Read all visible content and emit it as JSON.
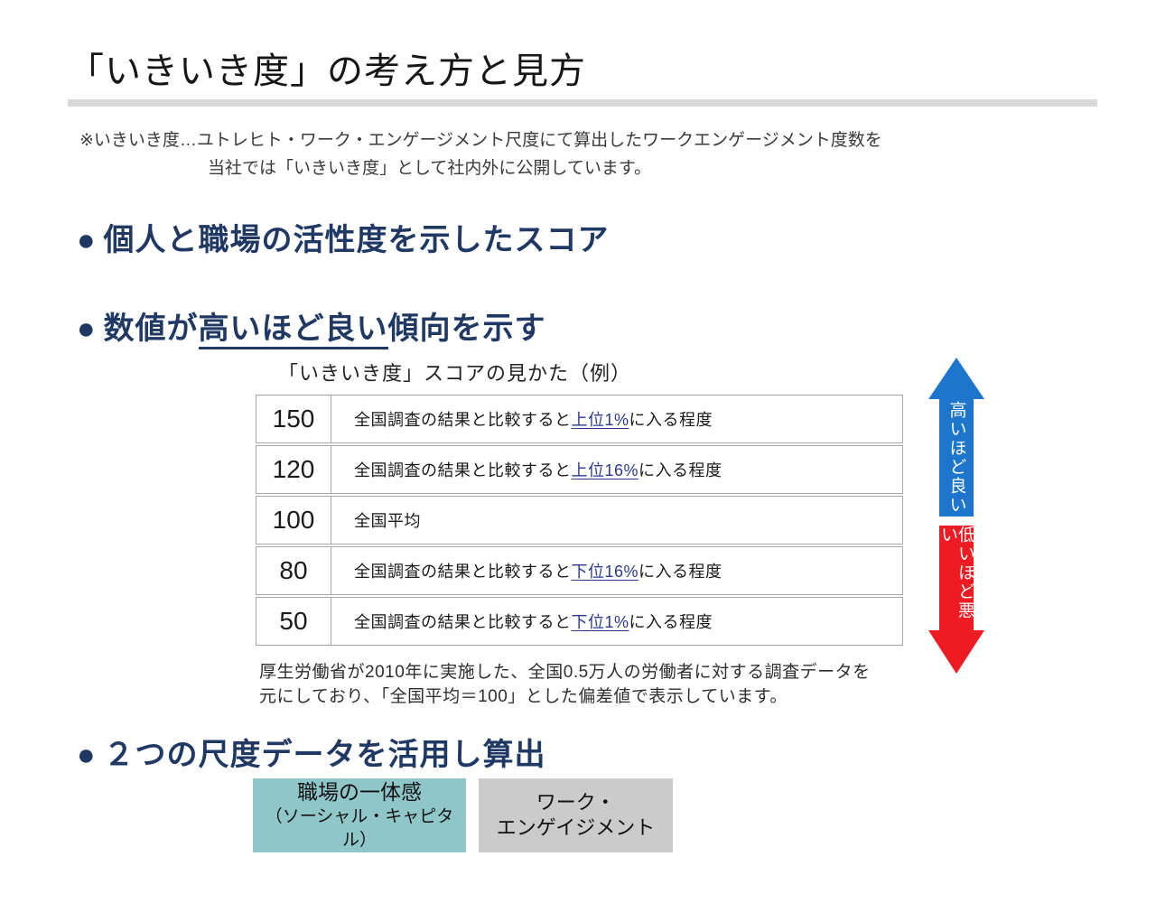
{
  "page": {
    "title": "「いきいき度」の考え方と見方",
    "note_line1": "※いきいき度…ユトレヒト・ワーク・エンゲージメント尺度にて算出したワークエンゲージメント度数を",
    "note_line2": "当社では「いきいき度」として社内外に公開しています。"
  },
  "bullets": {
    "bullet1": {
      "marker": "●",
      "text": "個人と職場の活性度を示したスコア"
    },
    "bullet2": {
      "marker": "●",
      "pre": "数値が",
      "underlined": "高いほど良い",
      "post": "傾向を示す"
    },
    "bullet3": {
      "marker": "●",
      "text": "２つの尺度データを活用し算出"
    }
  },
  "score_table": {
    "title": "「いきいき度」スコアの見かた（例）",
    "rows": [
      {
        "score": "150",
        "pre": "全国調査の結果と比較すると",
        "highlight": "上位1%",
        "post": "に入る程度"
      },
      {
        "score": "120",
        "pre": "全国調査の結果と比較すると",
        "highlight": "上位16%",
        "post": "に入る程度"
      },
      {
        "score": "100",
        "pre": "全国平均",
        "highlight": "",
        "post": ""
      },
      {
        "score": "80",
        "pre": "全国調査の結果と比較すると",
        "highlight": "下位16%",
        "post": "に入る程度"
      },
      {
        "score": "50",
        "pre": "全国調査の結果と比較すると",
        "highlight": "下位1%",
        "post": "に入る程度"
      }
    ],
    "footnote_line1": "厚生労働省が2010年に実施した、全国0.5万人の労働者に対する調査データを",
    "footnote_line2": "元にしており、「全国平均＝100」とした偏差値で表示しています。"
  },
  "arrows": {
    "up": {
      "label": "高いほど良い",
      "color": "#1e76cc"
    },
    "down": {
      "label": "低いほど悪い",
      "color": "#ee1b23"
    }
  },
  "factor_boxes": [
    {
      "line1": "職場の一体感",
      "line2": "（ソーシャル・キャピタル）",
      "color": "#8fc6c9"
    },
    {
      "line1": "ワーク・",
      "line2": "エンゲイジメント",
      "color": "#cbcbcb"
    }
  ],
  "colors": {
    "heading_navy": "#1f3864",
    "highlight_navy": "#2b3a8c",
    "table_border": "#a6a6a6",
    "title_rule_gray": "#d9d9d9",
    "arrow_blue": "#1e76cc",
    "arrow_red": "#ee1b23",
    "box_teal": "#8fc6c9",
    "box_gray": "#cbcbcb"
  }
}
